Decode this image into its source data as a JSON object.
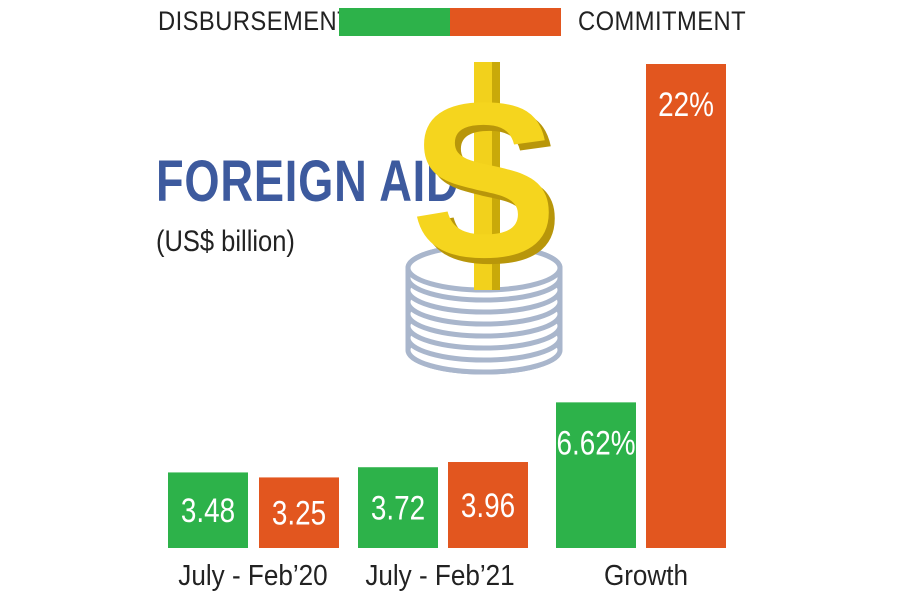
{
  "legend": {
    "disbursement_label": "DISBURSEMENT",
    "commitment_label": "COMMITMENT"
  },
  "colors": {
    "disbursement": "#2db24a",
    "commitment": "#e2561f",
    "title": "#3d5a9e",
    "dollar_gold": "#f2d11c",
    "coin": "#a9b6cc"
  },
  "icons": [
    "dollar-sign-icon",
    "coin-stack-icon"
  ],
  "chart_data": {
    "type": "bar",
    "title": "FOREIGN AID",
    "subtitle": "(US$ billion)",
    "categories": [
      "July - Feb’20",
      "July - Feb’21",
      "Growth"
    ],
    "series": [
      {
        "name": "DISBURSEMENT",
        "values": [
          3.48,
          3.72,
          6.62
        ],
        "labels": [
          "3.48",
          "3.72",
          "6.62%"
        ]
      },
      {
        "name": "COMMITMENT",
        "values": [
          3.25,
          3.96,
          22
        ],
        "labels": [
          "3.25",
          "3.96",
          "22%"
        ]
      }
    ],
    "legend": "top",
    "grid": false
  }
}
